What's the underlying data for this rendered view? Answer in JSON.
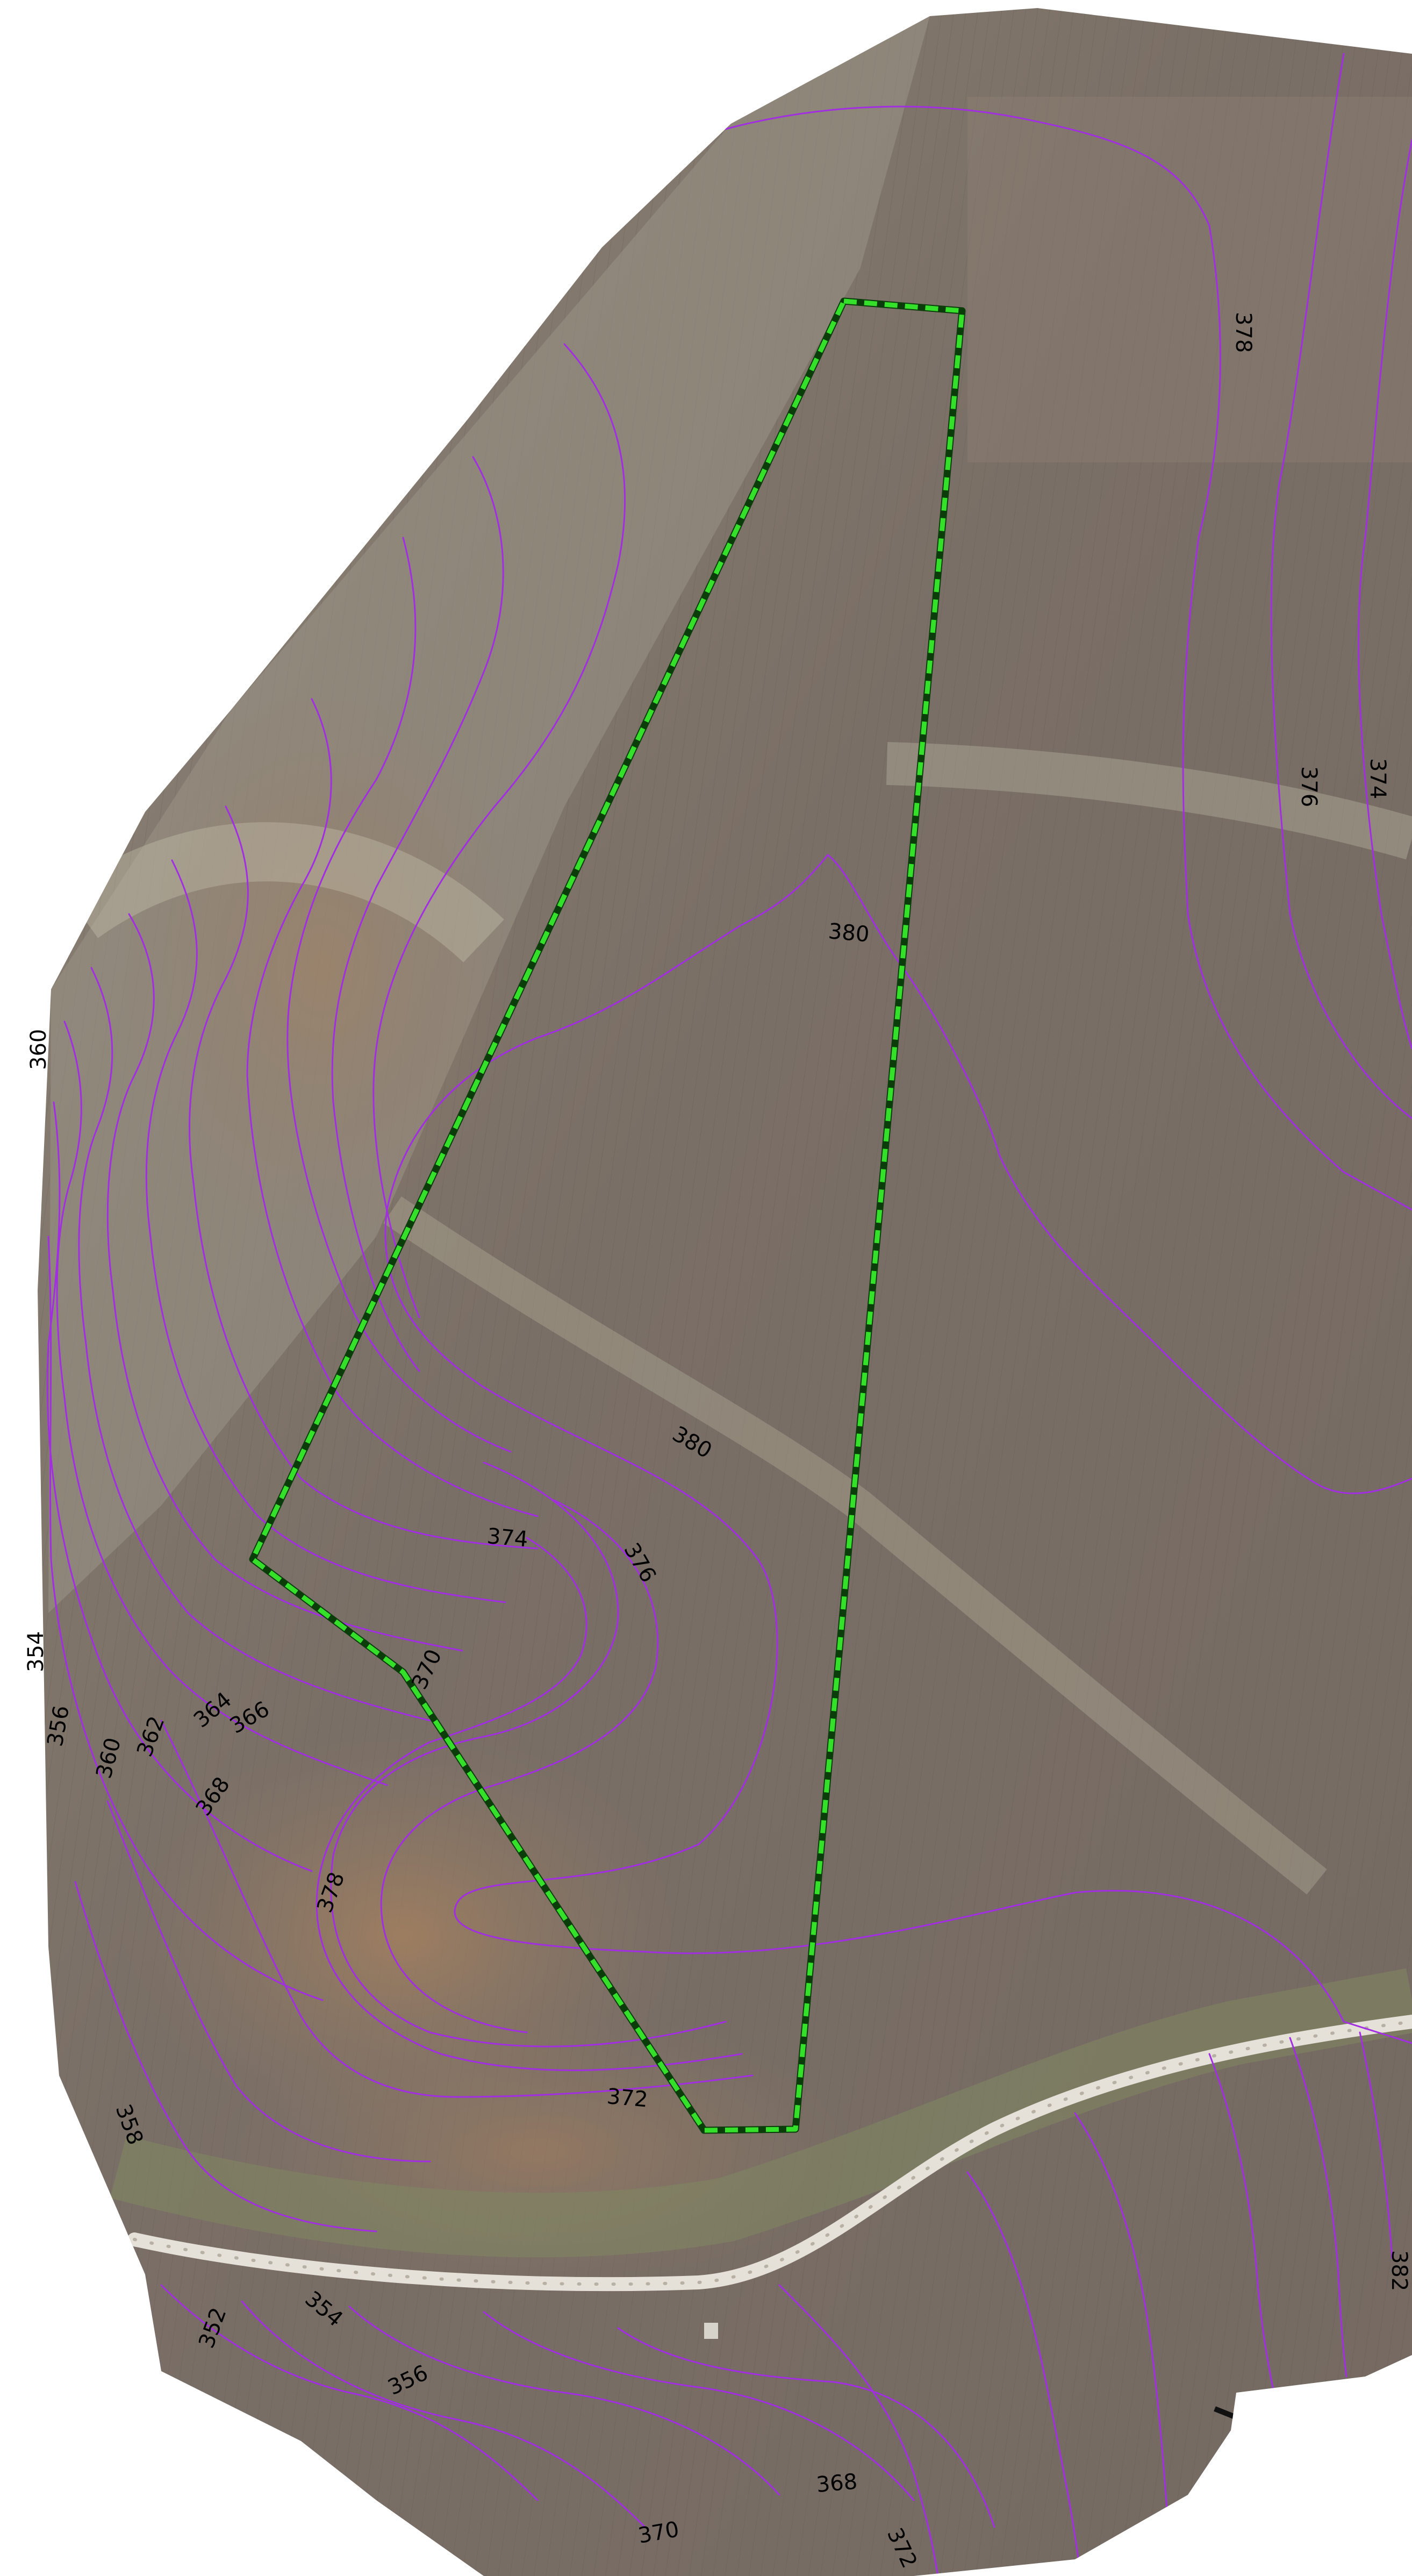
{
  "map": {
    "colors": {
      "contour": "#a12ee0",
      "boundary": "#35e02a",
      "road": "#e6e1d8",
      "field_dark": "#73685f",
      "field_light": "#8f8577",
      "field_brown": "#9c7a60",
      "grass": "#8a8c6e"
    },
    "contour_labels": [
      "360",
      "354",
      "356",
      "360",
      "362",
      "364",
      "366",
      "368",
      "370",
      "374",
      "376",
      "378",
      "380",
      "380",
      "372",
      "378",
      "358",
      "352",
      "354",
      "356",
      "368",
      "370",
      "372",
      "378",
      "376",
      "374",
      "382"
    ],
    "boundary": {
      "style": "dashed",
      "description_visible": false
    }
  }
}
